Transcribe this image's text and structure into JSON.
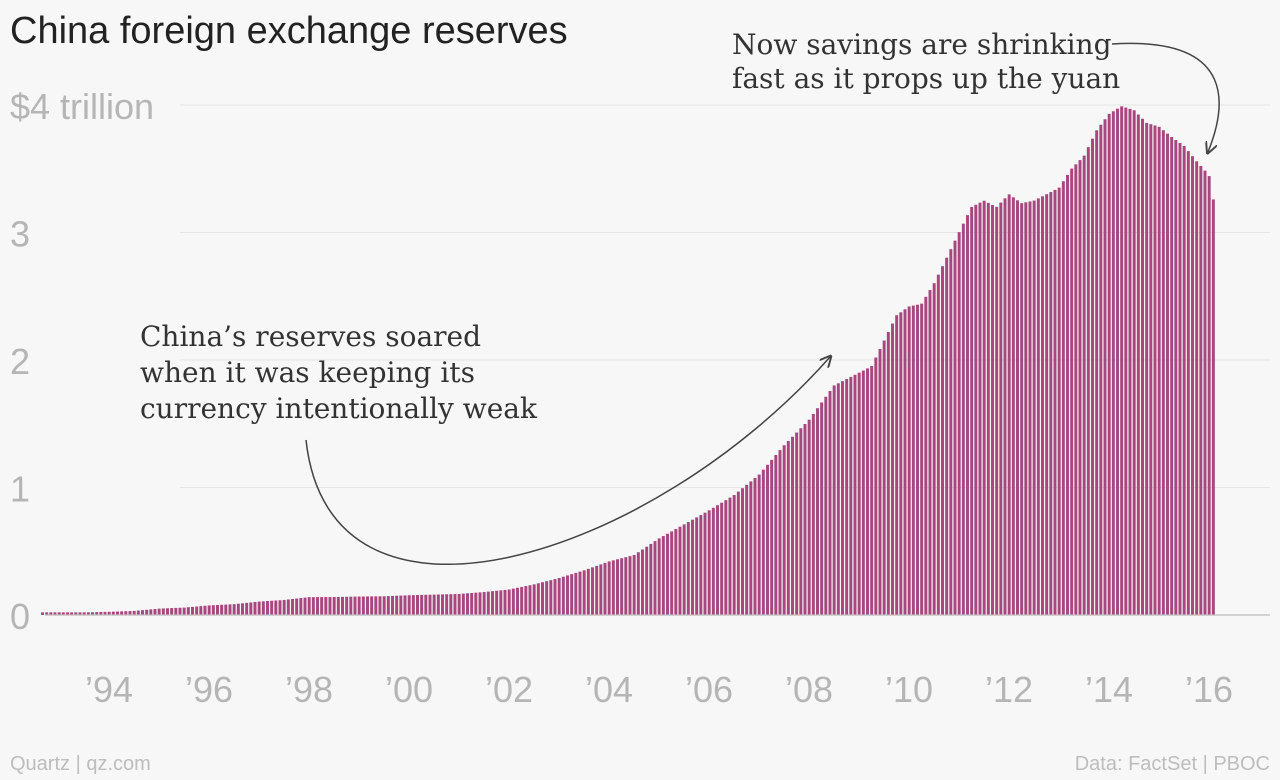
{
  "chart_data": {
    "type": "bar",
    "title": "China foreign exchange reserves",
    "ylabel": "",
    "xlabel": "",
    "ylim": [
      0,
      4
    ],
    "grid": true,
    "bar_color": "#a8477f",
    "yticks": [
      {
        "value": 0,
        "label": "0"
      },
      {
        "value": 1,
        "label": "1"
      },
      {
        "value": 2,
        "label": "2"
      },
      {
        "value": 3,
        "label": "3"
      },
      {
        "value": 4,
        "label": "$4 trillion"
      }
    ],
    "xticks": [
      {
        "value": 1994,
        "label": "’94"
      },
      {
        "value": 1996,
        "label": "’96"
      },
      {
        "value": 1998,
        "label": "’98"
      },
      {
        "value": 2000,
        "label": "’00"
      },
      {
        "value": 2002,
        "label": "’02"
      },
      {
        "value": 2004,
        "label": "’04"
      },
      {
        "value": 2006,
        "label": "’06"
      },
      {
        "value": 2008,
        "label": "’08"
      },
      {
        "value": 2010,
        "label": "’10"
      },
      {
        "value": 2012,
        "label": "’12"
      },
      {
        "value": 2014,
        "label": "’14"
      },
      {
        "value": 2016,
        "label": "’16"
      }
    ],
    "series": [
      {
        "points": [
          [
            1993.0,
            0.021
          ],
          [
            1993.5,
            0.021
          ],
          [
            1994.0,
            0.025
          ],
          [
            1994.5,
            0.032
          ],
          [
            1995.0,
            0.05
          ],
          [
            1995.5,
            0.058
          ],
          [
            1996.0,
            0.075
          ],
          [
            1996.5,
            0.085
          ],
          [
            1997.0,
            0.105
          ],
          [
            1997.5,
            0.118
          ],
          [
            1998.0,
            0.14
          ],
          [
            1998.5,
            0.141
          ],
          [
            1999.0,
            0.145
          ],
          [
            1999.5,
            0.147
          ],
          [
            2000.0,
            0.155
          ],
          [
            2000.5,
            0.16
          ],
          [
            2001.0,
            0.165
          ],
          [
            2001.5,
            0.18
          ],
          [
            2002.0,
            0.2
          ],
          [
            2002.5,
            0.24
          ],
          [
            2003.0,
            0.29
          ],
          [
            2003.5,
            0.35
          ],
          [
            2004.0,
            0.42
          ],
          [
            2004.5,
            0.47
          ],
          [
            2005.0,
            0.6
          ],
          [
            2005.5,
            0.71
          ],
          [
            2006.0,
            0.82
          ],
          [
            2006.5,
            0.94
          ],
          [
            2007.0,
            1.1
          ],
          [
            2007.5,
            1.33
          ],
          [
            2008.0,
            1.53
          ],
          [
            2008.5,
            1.8
          ],
          [
            2009.0,
            1.9
          ],
          [
            2009.25,
            1.95
          ],
          [
            2009.5,
            2.15
          ],
          [
            2009.75,
            2.35
          ],
          [
            2010.0,
            2.42
          ],
          [
            2010.25,
            2.44
          ],
          [
            2010.5,
            2.6
          ],
          [
            2010.75,
            2.8
          ],
          [
            2011.0,
            3.0
          ],
          [
            2011.25,
            3.2
          ],
          [
            2011.5,
            3.25
          ],
          [
            2011.75,
            3.2
          ],
          [
            2012.0,
            3.3
          ],
          [
            2012.25,
            3.23
          ],
          [
            2012.5,
            3.25
          ],
          [
            2012.75,
            3.3
          ],
          [
            2013.0,
            3.35
          ],
          [
            2013.25,
            3.5
          ],
          [
            2013.5,
            3.6
          ],
          [
            2013.75,
            3.8
          ],
          [
            2014.0,
            3.93
          ],
          [
            2014.25,
            3.99
          ],
          [
            2014.5,
            3.96
          ],
          [
            2014.75,
            3.86
          ],
          [
            2015.0,
            3.83
          ],
          [
            2015.25,
            3.75
          ],
          [
            2015.5,
            3.68
          ],
          [
            2015.75,
            3.56
          ],
          [
            2016.0,
            3.45
          ],
          [
            2016.1,
            3.23
          ]
        ]
      }
    ],
    "annotations": [
      {
        "lines": [
          "China’s reserves soared",
          "when it was keeping its",
          "currency intentionally weak"
        ]
      },
      {
        "lines": [
          "Now savings are shrinking",
          "fast as it props up the yuan"
        ]
      }
    ]
  },
  "footer": {
    "source_left": "Quartz | qz.com",
    "source_right": "Data: FactSet | PBOC"
  }
}
